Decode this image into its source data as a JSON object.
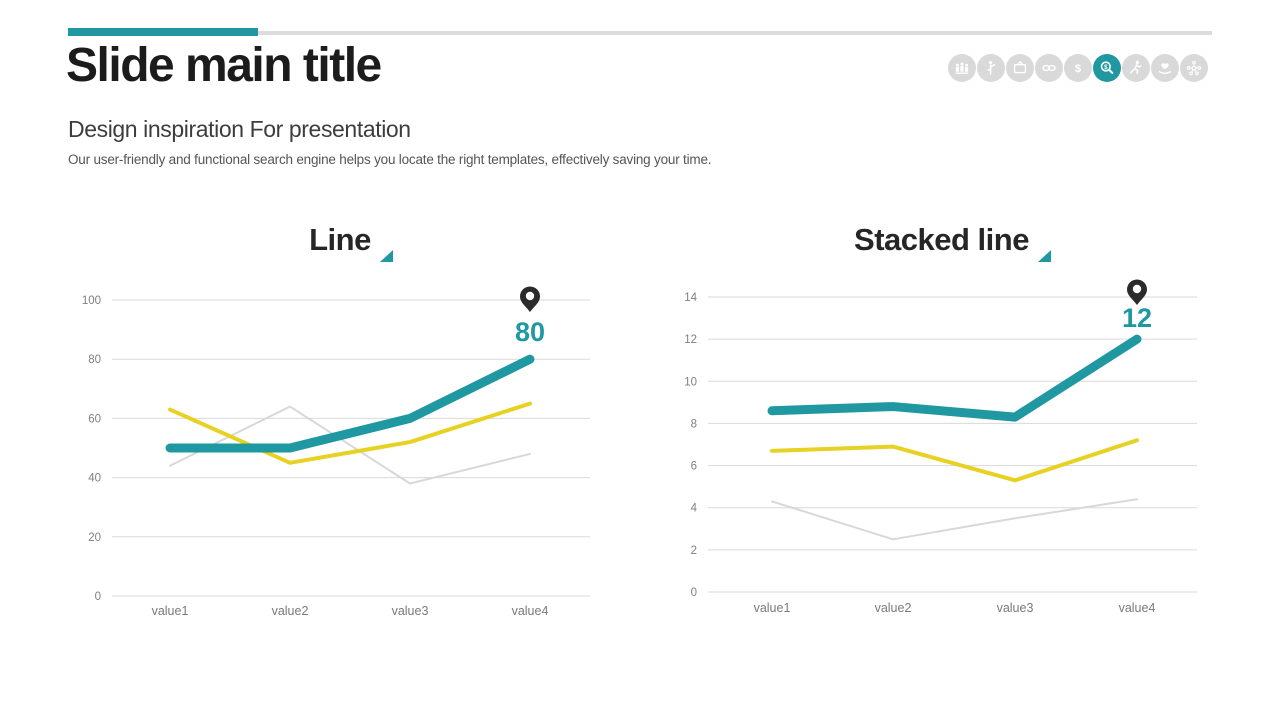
{
  "header": {
    "title": "Slide main title",
    "subtitle": "Design inspiration For presentation",
    "description": "Our user-friendly and functional search engine helps you locate the right templates, effectively saving your time."
  },
  "colors": {
    "accent": "#1f98a2",
    "series_yellow": "#e7d123",
    "series_gray": "#d8d8d8",
    "gridline": "#dadada",
    "pin": "#2b2b2b"
  },
  "toolbar": {
    "items": [
      {
        "name": "audience",
        "active": false
      },
      {
        "name": "presenter",
        "active": false
      },
      {
        "name": "tv",
        "active": false
      },
      {
        "name": "link",
        "active": false
      },
      {
        "name": "dollar",
        "active": false
      },
      {
        "name": "search-dollar",
        "active": true
      },
      {
        "name": "running-person",
        "active": false
      },
      {
        "name": "hand-heart",
        "active": false
      },
      {
        "name": "network",
        "active": false
      }
    ]
  },
  "chart_data": [
    {
      "type": "line",
      "title": "Line",
      "categories": [
        "value1",
        "value2",
        "value3",
        "value4"
      ],
      "ylim": [
        0,
        100
      ],
      "yticks": [
        0,
        20,
        40,
        60,
        80,
        100
      ],
      "grid": true,
      "legend": false,
      "series": [
        {
          "name": "teal",
          "color": "#1f98a2",
          "width": 9,
          "values": [
            50,
            50,
            60,
            80
          ]
        },
        {
          "name": "yellow",
          "color": "#e7d123",
          "width": 4,
          "values": [
            63,
            45,
            52,
            65
          ]
        },
        {
          "name": "gray",
          "color": "#d8d8d8",
          "width": 2,
          "values": [
            44,
            64,
            38,
            48
          ]
        }
      ],
      "annotation": {
        "text": "80",
        "series": "teal",
        "point_index": 3
      }
    },
    {
      "type": "line",
      "title": "Stacked line",
      "categories": [
        "value1",
        "value2",
        "value3",
        "value4"
      ],
      "ylim": [
        0,
        14
      ],
      "yticks": [
        0,
        2,
        4,
        6,
        8,
        10,
        12,
        14
      ],
      "grid": true,
      "legend": false,
      "series": [
        {
          "name": "teal",
          "color": "#1f98a2",
          "width": 9,
          "values": [
            8.6,
            8.8,
            8.3,
            12
          ]
        },
        {
          "name": "yellow",
          "color": "#e7d123",
          "width": 4,
          "values": [
            6.7,
            6.9,
            5.3,
            7.2
          ]
        },
        {
          "name": "gray",
          "color": "#d8d8d8",
          "width": 2,
          "values": [
            4.3,
            2.5,
            3.5,
            4.4
          ]
        }
      ],
      "annotation": {
        "text": "12",
        "series": "teal",
        "point_index": 3
      }
    }
  ]
}
